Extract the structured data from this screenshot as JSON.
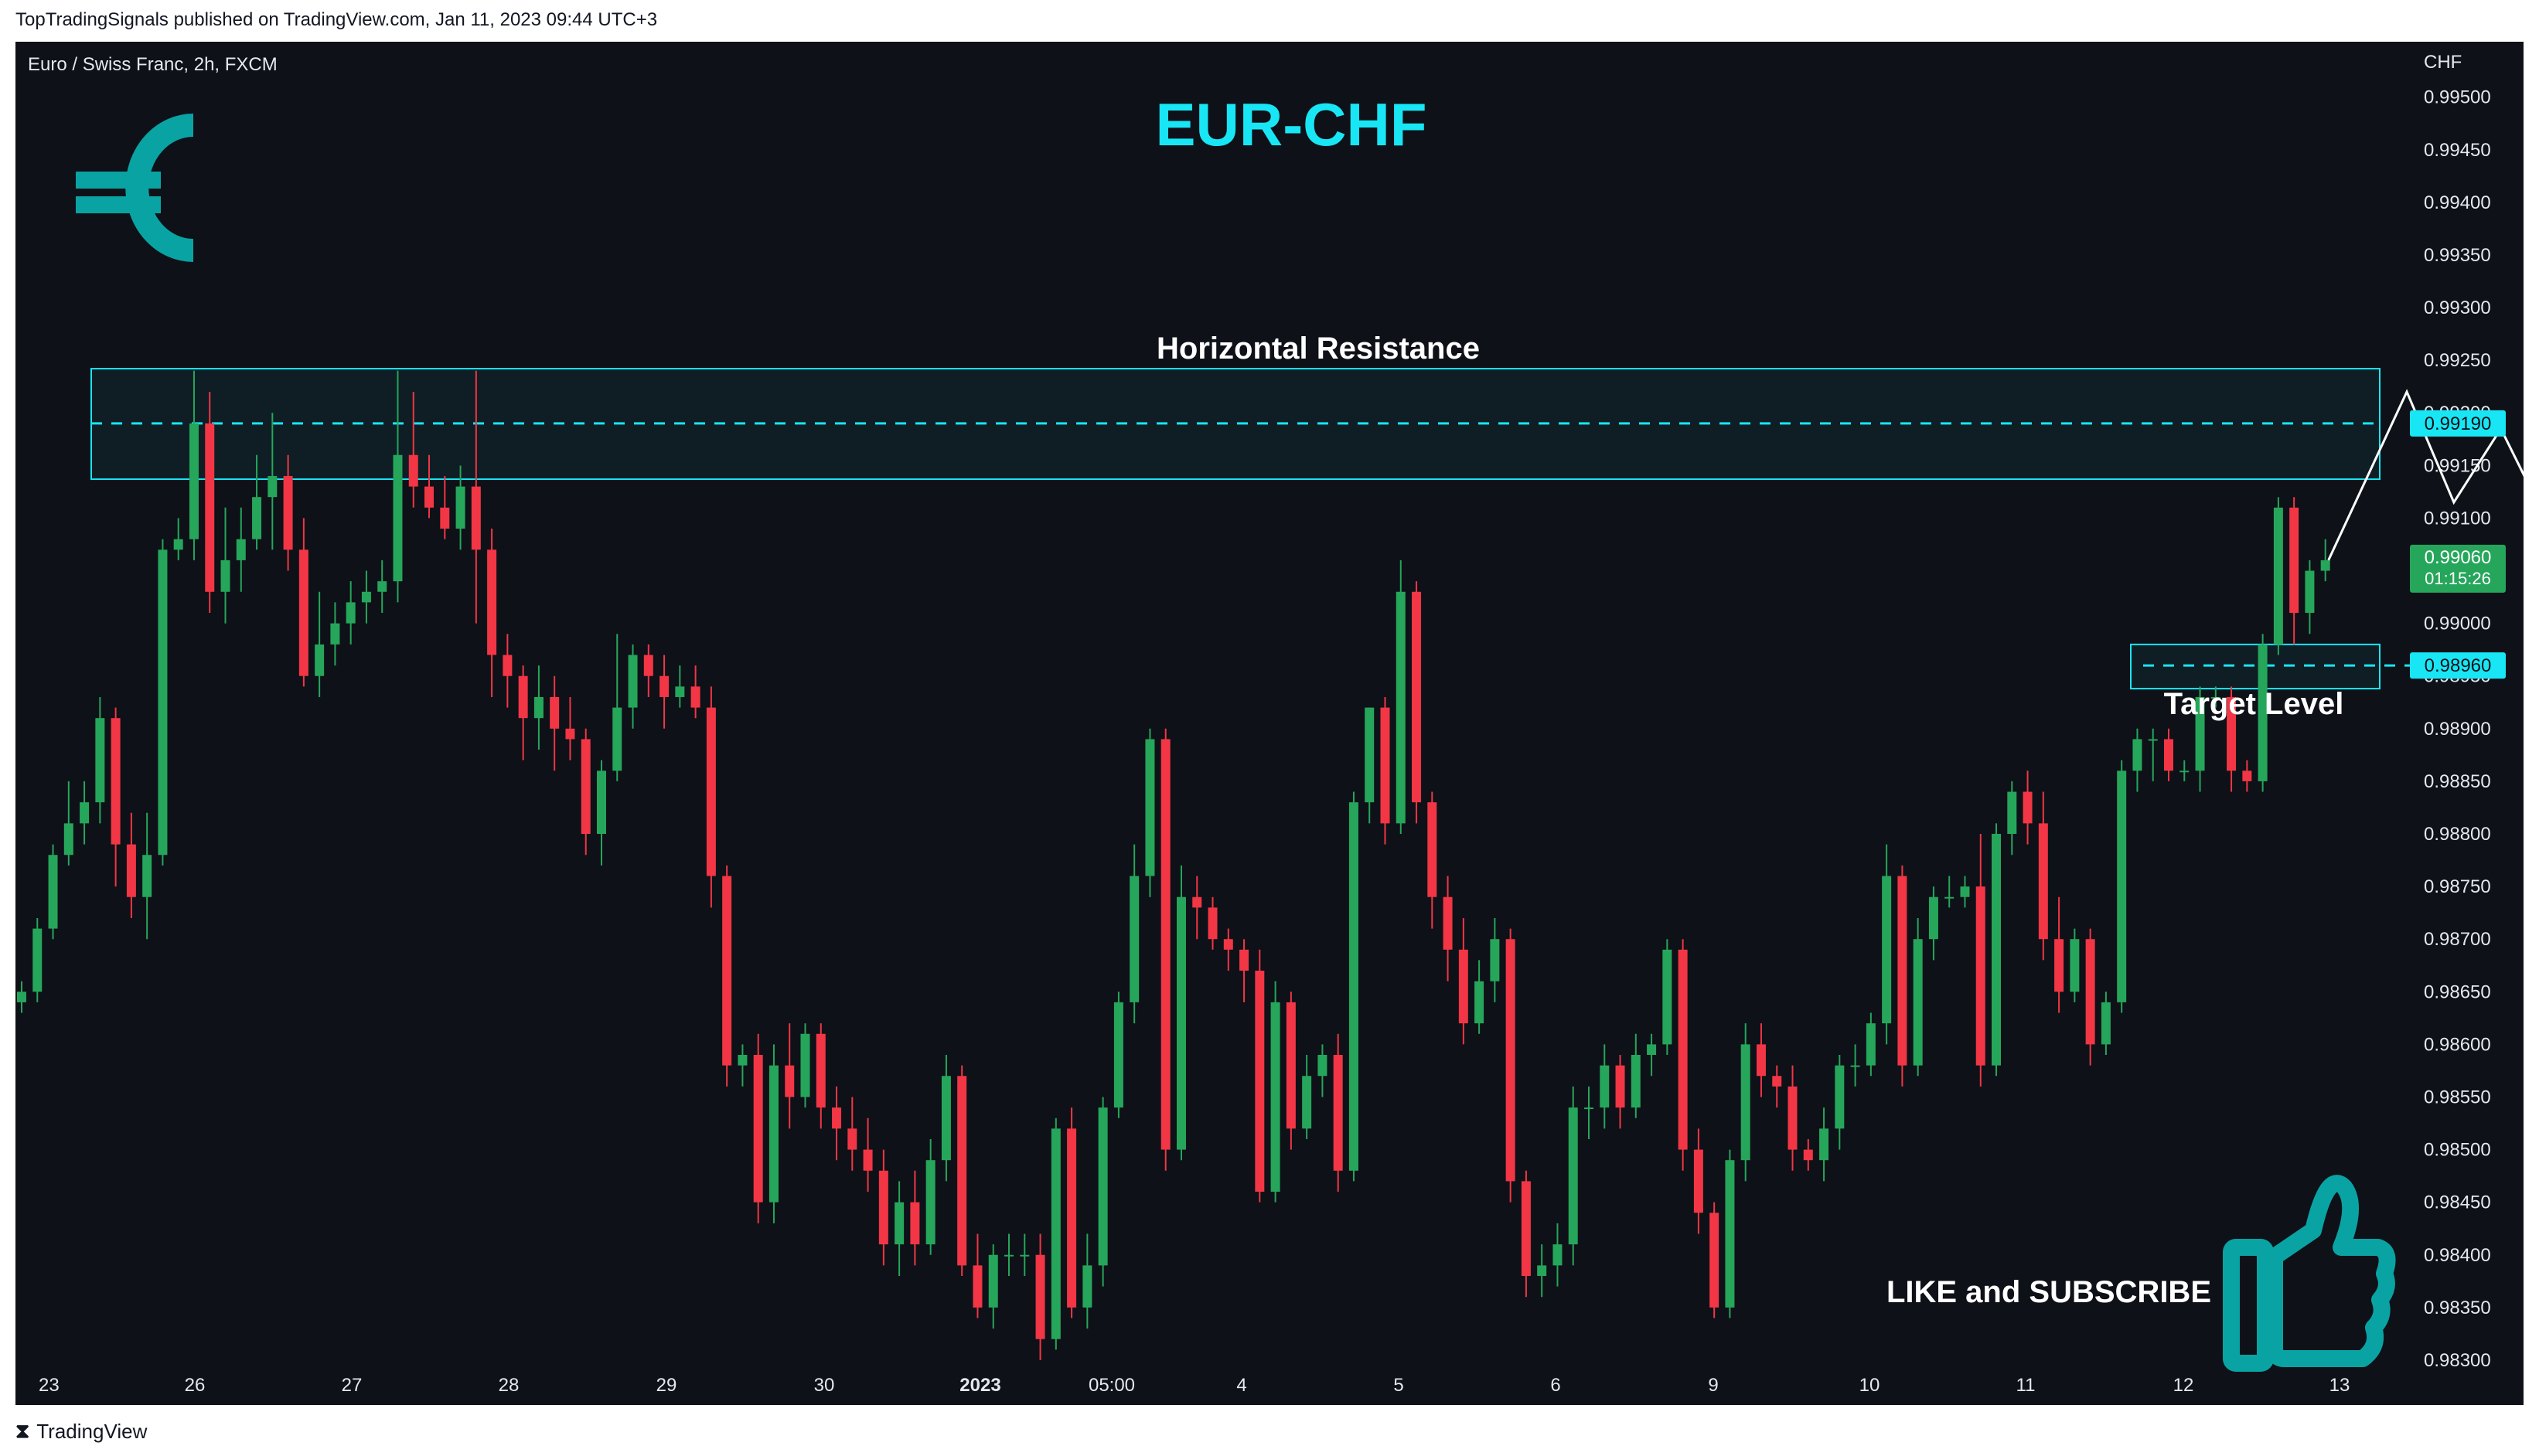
{
  "header": {
    "publisher_line": "TopTradingSignals published on TradingView.com, Jan 11, 2023 09:44 UTC+3"
  },
  "chart_header": {
    "symbol_line": "Euro / Swiss Franc, 2h, FXCM"
  },
  "footer": {
    "brand": "TradingView"
  },
  "annotations": {
    "title": "EUR-CHF",
    "resistance_label": "Horizontal Resistance",
    "target_label": "Target Level",
    "cta": "LIKE and SUBSCRIBE"
  },
  "colors": {
    "background": "#0e1118",
    "bull": "#26a65b",
    "bear": "#f23645",
    "accent_cyan": "#18e6f5",
    "teal_icon": "#0aa3a3"
  },
  "icons": [
    "euro-icon",
    "thumbs-up-icon",
    "tradingview-logo-icon"
  ],
  "chart_data": {
    "type": "candlestick",
    "instrument": "Euro / Swiss Franc",
    "timeframe": "2h",
    "source": "FXCM",
    "y_axis": {
      "unit": "CHF",
      "ylim": [
        0.98275,
        0.99535
      ],
      "ticks": [
        "0.99500",
        "0.99450",
        "0.99400",
        "0.99350",
        "0.99300",
        "0.99250",
        "0.99200",
        "0.99150",
        "0.99100",
        "0.99050",
        "0.99000",
        "0.98950",
        "0.98900",
        "0.98850",
        "0.98800",
        "0.98750",
        "0.98700",
        "0.98650",
        "0.98600",
        "0.98550",
        "0.98500",
        "0.98450",
        "0.98400",
        "0.98350",
        "0.98300"
      ]
    },
    "x_axis": {
      "tick_labels": [
        "23",
        "26",
        "27",
        "28",
        "29",
        "30",
        "2023",
        "05:00",
        "4",
        "5",
        "6",
        "9",
        "10",
        "11",
        "12",
        "13"
      ]
    },
    "price_labels": {
      "resistance": "0.99190",
      "current": "0.99060",
      "countdown": "01:15:26",
      "target": "0.98960"
    },
    "zones": {
      "resistance": {
        "low": 0.99137,
        "high": 0.99242,
        "level": 0.9919
      },
      "target": {
        "low": 0.98938,
        "high": 0.9898,
        "level": 0.9896
      }
    },
    "projection_path": [
      [
        0,
        0.9906
      ],
      [
        5,
        0.9922
      ],
      [
        8,
        0.99115
      ],
      [
        11,
        0.99185
      ],
      [
        18,
        0.98975
      ]
    ],
    "candles": [
      [
        0.9864,
        0.9866,
        0.9863,
        0.9865
      ],
      [
        0.9865,
        0.9872,
        0.9864,
        0.9871
      ],
      [
        0.9871,
        0.9879,
        0.987,
        0.9878
      ],
      [
        0.9878,
        0.9885,
        0.9877,
        0.9881
      ],
      [
        0.9881,
        0.9885,
        0.9879,
        0.9883
      ],
      [
        0.9883,
        0.9893,
        0.9881,
        0.9891
      ],
      [
        0.9891,
        0.9892,
        0.9875,
        0.9879
      ],
      [
        0.9879,
        0.9882,
        0.9872,
        0.9874
      ],
      [
        0.9874,
        0.9882,
        0.987,
        0.9878
      ],
      [
        0.9878,
        0.9908,
        0.9877,
        0.9907
      ],
      [
        0.9907,
        0.991,
        0.9906,
        0.9908
      ],
      [
        0.9908,
        0.9924,
        0.9906,
        0.9919
      ],
      [
        0.9919,
        0.9922,
        0.9901,
        0.9903
      ],
      [
        0.9903,
        0.9911,
        0.99,
        0.9906
      ],
      [
        0.9906,
        0.9911,
        0.9903,
        0.9908
      ],
      [
        0.9908,
        0.9916,
        0.9907,
        0.9912
      ],
      [
        0.9912,
        0.992,
        0.9907,
        0.9914
      ],
      [
        0.9914,
        0.9916,
        0.9905,
        0.9907
      ],
      [
        0.9907,
        0.991,
        0.9894,
        0.9895
      ],
      [
        0.9895,
        0.9903,
        0.9893,
        0.9898
      ],
      [
        0.9898,
        0.9902,
        0.9896,
        0.99
      ],
      [
        0.99,
        0.9904,
        0.9898,
        0.9902
      ],
      [
        0.9902,
        0.9905,
        0.99,
        0.9903
      ],
      [
        0.9903,
        0.9906,
        0.9901,
        0.9904
      ],
      [
        0.9904,
        0.9924,
        0.9902,
        0.9916
      ],
      [
        0.9916,
        0.9922,
        0.9911,
        0.9913
      ],
      [
        0.9913,
        0.9916,
        0.991,
        0.9911
      ],
      [
        0.9911,
        0.9914,
        0.9908,
        0.9909
      ],
      [
        0.9909,
        0.9915,
        0.9907,
        0.9913
      ],
      [
        0.9913,
        0.9924,
        0.99,
        0.9907
      ],
      [
        0.9907,
        0.9909,
        0.9893,
        0.9897
      ],
      [
        0.9897,
        0.9899,
        0.9892,
        0.9895
      ],
      [
        0.9895,
        0.9896,
        0.9887,
        0.9891
      ],
      [
        0.9891,
        0.9896,
        0.9888,
        0.9893
      ],
      [
        0.9893,
        0.9895,
        0.9886,
        0.989
      ],
      [
        0.989,
        0.9893,
        0.9887,
        0.9889
      ],
      [
        0.9889,
        0.989,
        0.9878,
        0.988
      ],
      [
        0.988,
        0.9887,
        0.9877,
        0.9886
      ],
      [
        0.9886,
        0.9899,
        0.9885,
        0.9892
      ],
      [
        0.9892,
        0.9898,
        0.989,
        0.9897
      ],
      [
        0.9897,
        0.9898,
        0.9893,
        0.9895
      ],
      [
        0.9895,
        0.9897,
        0.989,
        0.9893
      ],
      [
        0.9893,
        0.9896,
        0.9892,
        0.9894
      ],
      [
        0.9894,
        0.9896,
        0.9891,
        0.9892
      ],
      [
        0.9892,
        0.9894,
        0.9873,
        0.9876
      ],
      [
        0.9876,
        0.9877,
        0.9856,
        0.9858
      ],
      [
        0.9858,
        0.986,
        0.9856,
        0.9859
      ],
      [
        0.9859,
        0.9861,
        0.9843,
        0.9845
      ],
      [
        0.9845,
        0.986,
        0.9843,
        0.9858
      ],
      [
        0.9858,
        0.9862,
        0.9852,
        0.9855
      ],
      [
        0.9855,
        0.9862,
        0.9854,
        0.9861
      ],
      [
        0.9861,
        0.9862,
        0.9852,
        0.9854
      ],
      [
        0.9854,
        0.9856,
        0.9849,
        0.9852
      ],
      [
        0.9852,
        0.9855,
        0.9848,
        0.985
      ],
      [
        0.985,
        0.9853,
        0.9846,
        0.9848
      ],
      [
        0.9848,
        0.985,
        0.9839,
        0.9841
      ],
      [
        0.9841,
        0.9847,
        0.9838,
        0.9845
      ],
      [
        0.9845,
        0.9848,
        0.9839,
        0.9841
      ],
      [
        0.9841,
        0.9851,
        0.984,
        0.9849
      ],
      [
        0.9849,
        0.9859,
        0.9847,
        0.9857
      ],
      [
        0.9857,
        0.9858,
        0.9838,
        0.9839
      ],
      [
        0.9839,
        0.9842,
        0.9834,
        0.9835
      ],
      [
        0.9835,
        0.9841,
        0.9833,
        0.984
      ],
      [
        0.984,
        0.9842,
        0.9838,
        0.984
      ],
      [
        0.984,
        0.9842,
        0.9838,
        0.984
      ],
      [
        0.984,
        0.9842,
        0.983,
        0.9832
      ],
      [
        0.9832,
        0.9853,
        0.9831,
        0.9852
      ],
      [
        0.9852,
        0.9854,
        0.9834,
        0.9835
      ],
      [
        0.9835,
        0.9842,
        0.9833,
        0.9839
      ],
      [
        0.9839,
        0.9855,
        0.9837,
        0.9854
      ],
      [
        0.9854,
        0.9865,
        0.9853,
        0.9864
      ],
      [
        0.9864,
        0.9879,
        0.9862,
        0.9876
      ],
      [
        0.9876,
        0.989,
        0.9874,
        0.9889
      ],
      [
        0.9889,
        0.989,
        0.9848,
        0.985
      ],
      [
        0.985,
        0.9877,
        0.9849,
        0.9874
      ],
      [
        0.9874,
        0.9876,
        0.987,
        0.9873
      ],
      [
        0.9873,
        0.9874,
        0.9869,
        0.987
      ],
      [
        0.987,
        0.9871,
        0.9867,
        0.9869
      ],
      [
        0.9869,
        0.987,
        0.9864,
        0.9867
      ],
      [
        0.9867,
        0.9869,
        0.9845,
        0.9846
      ],
      [
        0.9846,
        0.9866,
        0.9845,
        0.9864
      ],
      [
        0.9864,
        0.9865,
        0.985,
        0.9852
      ],
      [
        0.9852,
        0.9859,
        0.9851,
        0.9857
      ],
      [
        0.9857,
        0.986,
        0.9855,
        0.9859
      ],
      [
        0.9859,
        0.9861,
        0.9846,
        0.9848
      ],
      [
        0.9848,
        0.9884,
        0.9847,
        0.9883
      ],
      [
        0.9883,
        0.9892,
        0.9881,
        0.9892
      ],
      [
        0.9892,
        0.9893,
        0.9879,
        0.9881
      ],
      [
        0.9881,
        0.9906,
        0.988,
        0.9903
      ],
      [
        0.9903,
        0.9904,
        0.9881,
        0.9883
      ],
      [
        0.9883,
        0.9884,
        0.9871,
        0.9874
      ],
      [
        0.9874,
        0.9876,
        0.9866,
        0.9869
      ],
      [
        0.9869,
        0.9872,
        0.986,
        0.9862
      ],
      [
        0.9862,
        0.9868,
        0.9861,
        0.9866
      ],
      [
        0.9866,
        0.9872,
        0.9864,
        0.987
      ],
      [
        0.987,
        0.9871,
        0.9845,
        0.9847
      ],
      [
        0.9847,
        0.9848,
        0.9836,
        0.9838
      ],
      [
        0.9838,
        0.9841,
        0.9836,
        0.9839
      ],
      [
        0.9839,
        0.9843,
        0.9837,
        0.9841
      ],
      [
        0.9841,
        0.9856,
        0.9839,
        0.9854
      ],
      [
        0.9854,
        0.9856,
        0.9851,
        0.9854
      ],
      [
        0.9854,
        0.986,
        0.9852,
        0.9858
      ],
      [
        0.9858,
        0.9859,
        0.9852,
        0.9854
      ],
      [
        0.9854,
        0.9861,
        0.9853,
        0.9859
      ],
      [
        0.9859,
        0.9861,
        0.9857,
        0.986
      ],
      [
        0.986,
        0.987,
        0.9859,
        0.9869
      ],
      [
        0.9869,
        0.987,
        0.9848,
        0.985
      ],
      [
        0.985,
        0.9852,
        0.9842,
        0.9844
      ],
      [
        0.9844,
        0.9845,
        0.9834,
        0.9835
      ],
      [
        0.9835,
        0.985,
        0.9834,
        0.9849
      ],
      [
        0.9849,
        0.9862,
        0.9847,
        0.986
      ],
      [
        0.986,
        0.9862,
        0.9855,
        0.9857
      ],
      [
        0.9857,
        0.9858,
        0.9854,
        0.9856
      ],
      [
        0.9856,
        0.9858,
        0.9848,
        0.985
      ],
      [
        0.985,
        0.9851,
        0.9848,
        0.9849
      ],
      [
        0.9849,
        0.9854,
        0.9847,
        0.9852
      ],
      [
        0.9852,
        0.9859,
        0.985,
        0.9858
      ],
      [
        0.9858,
        0.986,
        0.9856,
        0.9858
      ],
      [
        0.9858,
        0.9863,
        0.9857,
        0.9862
      ],
      [
        0.9862,
        0.9879,
        0.986,
        0.9876
      ],
      [
        0.9876,
        0.9877,
        0.9856,
        0.9858
      ],
      [
        0.9858,
        0.9872,
        0.9857,
        0.987
      ],
      [
        0.987,
        0.9875,
        0.9868,
        0.9874
      ],
      [
        0.9874,
        0.9876,
        0.9873,
        0.9874
      ],
      [
        0.9874,
        0.9876,
        0.9873,
        0.9875
      ],
      [
        0.9875,
        0.988,
        0.9856,
        0.9858
      ],
      [
        0.9858,
        0.9881,
        0.9857,
        0.988
      ],
      [
        0.988,
        0.9885,
        0.9878,
        0.9884
      ],
      [
        0.9884,
        0.9886,
        0.9879,
        0.9881
      ],
      [
        0.9881,
        0.9884,
        0.9868,
        0.987
      ],
      [
        0.987,
        0.9874,
        0.9863,
        0.9865
      ],
      [
        0.9865,
        0.9871,
        0.9864,
        0.987
      ],
      [
        0.987,
        0.9871,
        0.9858,
        0.986
      ],
      [
        0.986,
        0.9865,
        0.9859,
        0.9864
      ],
      [
        0.9864,
        0.9887,
        0.9863,
        0.9886
      ],
      [
        0.9886,
        0.989,
        0.9884,
        0.9889
      ],
      [
        0.9889,
        0.989,
        0.9885,
        0.9889
      ],
      [
        0.9889,
        0.989,
        0.9885,
        0.9886
      ],
      [
        0.9886,
        0.9887,
        0.9885,
        0.9886
      ],
      [
        0.9886,
        0.9894,
        0.9884,
        0.9893
      ],
      [
        0.9893,
        0.9894,
        0.9892,
        0.9893
      ],
      [
        0.9893,
        0.9894,
        0.9884,
        0.9886
      ],
      [
        0.9886,
        0.9887,
        0.9884,
        0.9885
      ],
      [
        0.9885,
        0.9899,
        0.9884,
        0.9898
      ],
      [
        0.9898,
        0.9912,
        0.9897,
        0.9911
      ],
      [
        0.9911,
        0.9912,
        0.9898,
        0.9901
      ],
      [
        0.9901,
        0.9906,
        0.9899,
        0.9905
      ],
      [
        0.9905,
        0.9908,
        0.9904,
        0.9906
      ]
    ]
  }
}
